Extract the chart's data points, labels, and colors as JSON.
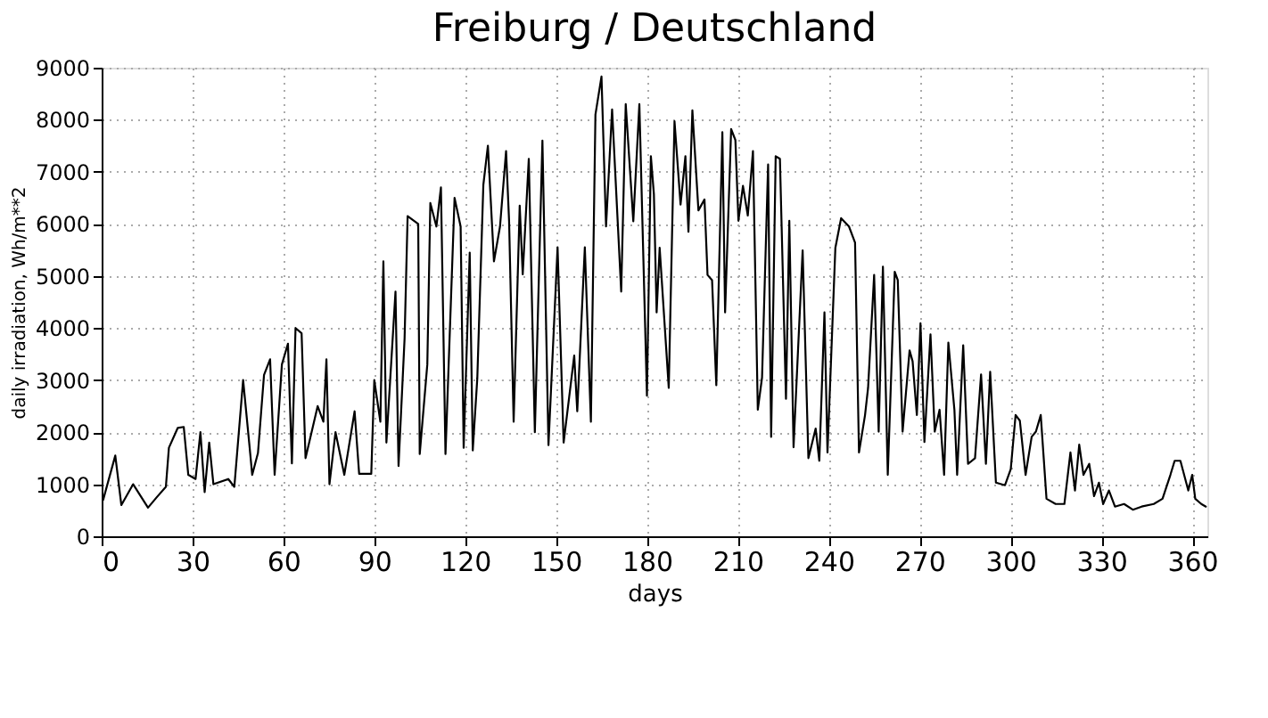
{
  "chart_data": {
    "type": "line",
    "title": "Freiburg / Deutschland",
    "xlabel": "days",
    "ylabel": "daily irradiation, Wh/m**2",
    "xlim": [
      0,
      365
    ],
    "xticks": [
      0,
      30,
      60,
      90,
      120,
      150,
      180,
      210,
      240,
      270,
      300,
      330,
      360
    ],
    "ylim": [
      0,
      9000
    ],
    "yticks": [
      0,
      1000,
      2000,
      3000,
      4000,
      5000,
      6000,
      7000,
      8000,
      9000
    ],
    "grid": true,
    "legend": false,
    "marker": "none",
    "line_style": "solid",
    "series": [
      {
        "color": "#000000",
        "x": [
          0.5,
          4.5,
          6.5,
          10.4,
          15.3,
          18.2,
          21.2,
          22.2,
          25.1,
          27.1,
          28.6,
          31,
          32.6,
          34,
          35.5,
          36.9,
          41.8,
          43.8,
          46.7,
          48.7,
          49.7,
          51.6,
          53.6,
          55.6,
          57.1,
          59.5,
          61.5,
          62.8,
          64,
          66,
          67.3,
          71.3,
          73.2,
          74.2,
          75.2,
          77.2,
          80.1,
          83.5,
          85,
          89,
          90,
          92,
          93,
          94,
          97,
          98,
          100,
          101,
          104.5,
          105,
          107.5,
          108.5,
          110.5,
          112,
          113.5,
          116.5,
          118.5,
          119.5,
          121.5,
          122.5,
          124,
          126,
          127.5,
          129.5,
          131.5,
          133.5,
          134.5,
          136,
          138,
          139,
          141,
          143,
          145.5,
          147.5,
          150.5,
          152.5,
          156,
          157,
          159.5,
          161.5,
          163,
          165,
          166.5,
          168.5,
          171.5,
          173,
          175.5,
          177.5,
          180,
          181.3,
          182.3,
          183.2,
          184.2,
          187.2,
          189.1,
          191.1,
          192.7,
          193.7,
          195,
          197,
          199,
          200,
          201.5,
          202.9,
          204.9,
          205.8,
          207.8,
          209.2,
          210.2,
          211.7,
          213.3,
          215,
          216.6,
          218,
          220,
          221,
          222.5,
          223.9,
          225.9,
          227,
          228.4,
          231.4,
          233.3,
          235.7,
          236.9,
          238.6,
          239.6,
          242.2,
          244.1,
          246.7,
          248.7,
          250,
          252,
          253,
          255,
          256.5,
          257.9,
          259.5,
          261.8,
          262.8,
          264.4,
          266.7,
          267.7,
          269.1,
          270.3,
          271.6,
          273.6,
          275,
          276.6,
          278.1,
          279.5,
          281.5,
          282.4,
          284.4,
          286,
          288.3,
          290.3,
          291.9,
          293.3,
          295.2,
          298.2,
          300.1,
          301.7,
          303.1,
          305,
          307,
          308.4,
          310,
          311.9,
          314.9,
          317.8,
          319.8,
          321.3,
          322.7,
          324.1,
          326,
          327.6,
          329.2,
          330.6,
          332.5,
          334.5,
          337.5,
          340.4,
          343.3,
          347.3,
          350.2,
          352.8,
          354.2,
          356.1,
          358.7,
          360,
          361,
          363,
          364.5
        ],
        "values": [
          700,
          1550,
          600,
          1000,
          550,
          750,
          950,
          1700,
          2080,
          2100,
          1180,
          1100,
          2000,
          850,
          1800,
          1000,
          1100,
          950,
          3000,
          1800,
          1180,
          1600,
          3100,
          3400,
          1180,
          3300,
          3700,
          1400,
          4000,
          3900,
          1500,
          2500,
          2200,
          3400,
          1000,
          2000,
          1180,
          2400,
          1200,
          1200,
          3000,
          2200,
          5280,
          1800,
          4700,
          1350,
          3800,
          6150,
          6000,
          1580,
          3300,
          6400,
          5950,
          6700,
          1580,
          6500,
          5950,
          1700,
          5450,
          1650,
          3030,
          6750,
          7500,
          5280,
          5950,
          7400,
          6050,
          2200,
          6350,
          5030,
          7250,
          2000,
          7600,
          1750,
          5550,
          1800,
          3470,
          2400,
          5550,
          2200,
          8100,
          8830,
          5950,
          8200,
          4700,
          8300,
          6050,
          8300,
          2700,
          7300,
          6570,
          4300,
          5540,
          2850,
          7970,
          6370,
          7300,
          5850,
          8180,
          6260,
          6470,
          5020,
          4920,
          2900,
          7760,
          4300,
          7820,
          7610,
          6060,
          6730,
          6160,
          7400,
          2430,
          3050,
          7140,
          1910,
          7300,
          7250,
          2640,
          6060,
          1710,
          5490,
          1500,
          2070,
          1450,
          4300,
          1610,
          5540,
          6110,
          5950,
          5640,
          1610,
          2330,
          2850,
          5020,
          2010,
          5180,
          1180,
          5080,
          4920,
          2010,
          3570,
          3360,
          2330,
          4090,
          1810,
          3880,
          2010,
          2430,
          1180,
          3720,
          2430,
          1180,
          3670,
          1390,
          1500,
          3110,
          1390,
          3160,
          1030,
          980,
          1290,
          2330,
          2220,
          1180,
          1910,
          2010,
          2330,
          720,
          620,
          620,
          1610,
          880,
          1760,
          1180,
          1390,
          770,
          1030,
          620,
          880,
          570,
          620,
          510,
          570,
          620,
          720,
          1180,
          1450,
          1450,
          880,
          1180,
          720,
          620,
          570
        ]
      }
    ]
  }
}
